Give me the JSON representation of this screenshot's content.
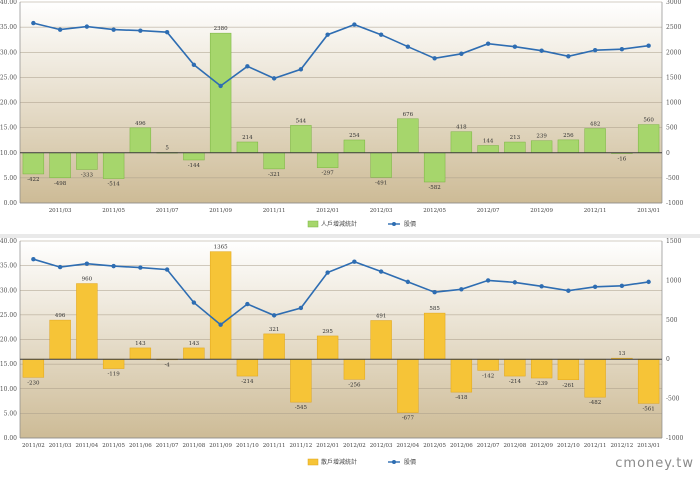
{
  "watermark": "cmoney.tw",
  "colors": {
    "bg_top": "#ffffff",
    "bg_bottom": "#cdbb96",
    "grid": "#a89c88",
    "price_line": "#2e6db2",
    "bar_top_fill": "#a6d66c",
    "bar_top_stroke": "#79b340",
    "bar_bottom_fill": "#f6c437",
    "bar_bottom_stroke": "#e0a51a"
  },
  "chart_data": [
    {
      "type": "bar",
      "legend": {
        "bar": "人戶增減統計",
        "line": "股價"
      },
      "left_axis": {
        "ticks": [
          "0.00",
          "5.00",
          "10.00",
          "15.00",
          "20.00",
          "25.00",
          "30.00",
          "35.00",
          "40.00"
        ],
        "ylim": [
          0,
          40
        ]
      },
      "right_axis": {
        "ticks": [
          "-1000",
          "-500",
          "0",
          "500",
          "1000",
          "1500",
          "2000",
          "2500",
          "3000"
        ],
        "ylim": [
          -1000,
          3000
        ]
      },
      "x_tick_labels": [
        "2011/03",
        "2011/05",
        "2011/07",
        "2011/09",
        "2011/11",
        "2012/01",
        "2012/03",
        "2012/05",
        "2012/07",
        "2012/09",
        "2012/11",
        "2013/01"
      ],
      "bars": [
        -422,
        -498,
        -333,
        -514,
        496,
        5,
        -144,
        2380,
        214,
        -321,
        544,
        -297,
        254,
        -491,
        676,
        -582,
        418,
        144,
        213,
        239,
        256,
        482,
        -16,
        560
      ],
      "bar_labels": [
        "-422",
        "-498",
        "-333",
        "-514",
        "496",
        "5",
        "-144",
        "2380",
        "214",
        "-321",
        "544",
        "-297",
        "254",
        "-491",
        "676",
        "-582",
        "418",
        "144",
        "213",
        "239",
        "256",
        "482",
        "-16",
        "560"
      ],
      "price": [
        35.8,
        34.5,
        35.1,
        34.5,
        34.3,
        34.0,
        27.5,
        23.3,
        27.2,
        24.8,
        26.6,
        33.5,
        35.5,
        33.5,
        31.1,
        28.8,
        29.7,
        31.7,
        31.1,
        30.3,
        29.2,
        30.4,
        30.6,
        31.3
      ]
    },
    {
      "type": "bar",
      "legend": {
        "bar": "散戶增減統計",
        "line": "股價"
      },
      "left_axis": {
        "ticks": [
          "0.00",
          "5.00",
          "10.00",
          "15.00",
          "20.00",
          "25.00",
          "30.00",
          "35.00",
          "40.00"
        ],
        "ylim": [
          0,
          40
        ]
      },
      "right_axis": {
        "ticks": [
          "-1000",
          "-500",
          "0",
          "500",
          "1000",
          "1500"
        ],
        "ylim": [
          -1000,
          1500
        ]
      },
      "x_tick_labels": [
        "2011/02",
        "2011/03",
        "2011/04",
        "2011/05",
        "2011/06",
        "2011/07",
        "2011/08",
        "2011/09",
        "2011/10",
        "2011/11",
        "2011/12",
        "2012/01",
        "2012/02",
        "2012/03",
        "2012/04",
        "2012/05",
        "2012/06",
        "2012/07",
        "2012/08",
        "2012/09",
        "2012/10",
        "2012/11",
        "2012/12",
        "2013/01"
      ],
      "bars": [
        -230,
        496,
        960,
        -119,
        143,
        -4,
        143,
        1365,
        -214,
        321,
        -545,
        295,
        -256,
        491,
        -677,
        585,
        -418,
        -142,
        -214,
        -239,
        -261,
        -482,
        13,
        -561
      ],
      "bar_labels": [
        "-230",
        "496",
        "960",
        "-119",
        "143",
        "-4",
        "143",
        "1365",
        "-214",
        "321",
        "-545",
        "295",
        "-256",
        "491",
        "-677",
        "585",
        "-418",
        "-142",
        "-214",
        "-239",
        "-261",
        "-482",
        "13",
        "-561"
      ],
      "price": [
        36.3,
        34.7,
        35.4,
        34.9,
        34.6,
        34.2,
        27.5,
        23.0,
        27.2,
        24.9,
        26.4,
        33.6,
        35.8,
        33.8,
        31.7,
        29.6,
        30.2,
        32.0,
        31.6,
        30.8,
        29.9,
        30.7,
        30.9,
        31.7
      ]
    }
  ]
}
